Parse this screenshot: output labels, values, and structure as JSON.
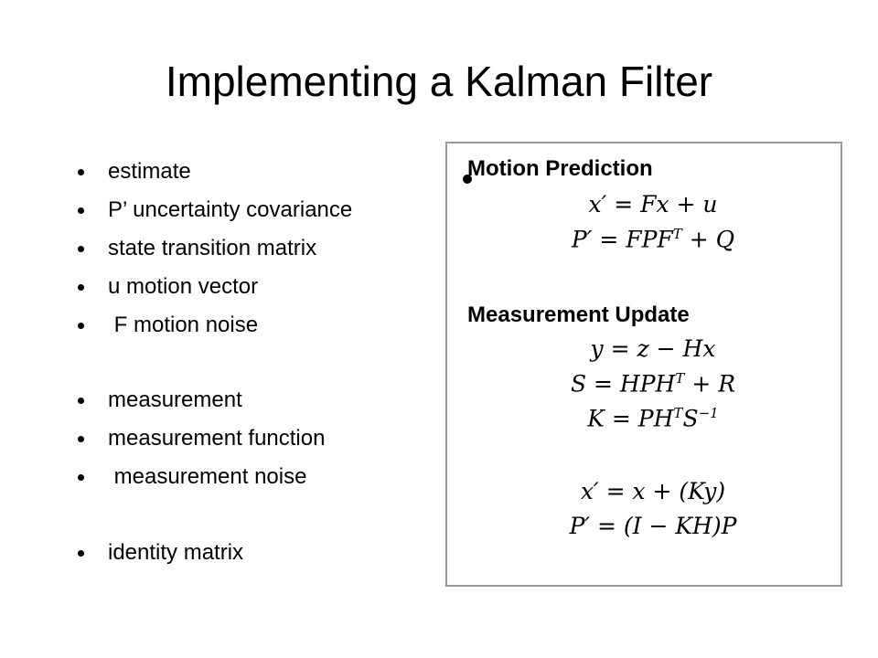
{
  "title": "Implementing a Kalman Filter",
  "bullets": [
    [
      "estimate",
      "P’ uncertainty covariance",
      "state transition matrix",
      "u motion vector",
      " F motion noise"
    ],
    [
      "measurement",
      "measurement function",
      " measurement noise"
    ],
    [
      "identity matrix"
    ]
  ],
  "panel": {
    "sections": [
      {
        "heading": "Motion Prediction",
        "equations": [
          [
            {
              "text": "x′ = Fx + u"
            }
          ],
          [
            {
              "text": "P′ = FPF"
            },
            {
              "sup": "T"
            },
            {
              "text": " + Q"
            }
          ]
        ]
      },
      {
        "heading": "Measurement Update",
        "equations": [
          [
            {
              "text": "y = z − Hx"
            }
          ],
          [
            {
              "text": "S = HPH"
            },
            {
              "sup": "T"
            },
            {
              "text": " + R"
            }
          ],
          [
            {
              "text": "K = PH"
            },
            {
              "sup": "T"
            },
            {
              "text": "S"
            },
            {
              "sup": "−1"
            }
          ],
          [
            {
              "text": "x′ = x + (Ky)"
            }
          ],
          [
            {
              "text": "P′ = (I − KH)P"
            }
          ]
        ]
      }
    ]
  }
}
